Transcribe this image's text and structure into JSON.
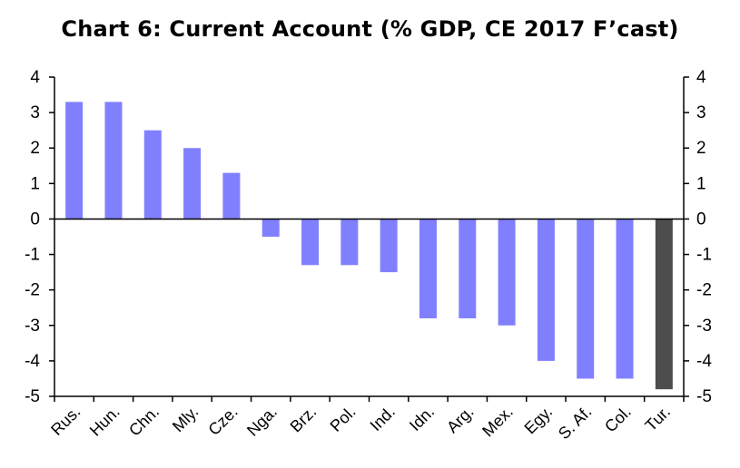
{
  "chart_data": {
    "type": "bar",
    "title": "Chart 6: Current Account (% GDP, CE 2017 F’cast)",
    "categories": [
      "Rus.",
      "Hun.",
      "Chn.",
      "Mly.",
      "Cze.",
      "Nga.",
      "Brz.",
      "Pol.",
      "Ind.",
      "Idn.",
      "Arg.",
      "Mex.",
      "Egy.",
      "S. Af.",
      "Col.",
      "Tur."
    ],
    "values": [
      3.3,
      3.3,
      2.5,
      2.0,
      1.3,
      -0.5,
      -1.3,
      -1.3,
      -1.5,
      -2.8,
      -2.8,
      -3.0,
      -4.0,
      -4.5,
      -4.5,
      -4.8
    ],
    "highlight_category": "Tur.",
    "colors": {
      "default": "#8080ff",
      "highlight": "#4d4d4d"
    },
    "ylim": [
      -5,
      4
    ],
    "yticks": [
      4,
      3,
      2,
      1,
      0,
      -1,
      -2,
      -3,
      -4,
      -5
    ],
    "ytick_labels": [
      "4",
      "3",
      "2",
      "1",
      "0",
      "-1",
      "-2",
      "-3",
      "-4",
      "-5"
    ],
    "secondary_y_axis": true,
    "xlabel": "",
    "ylabel": "",
    "grid": false,
    "legend": "none"
  }
}
